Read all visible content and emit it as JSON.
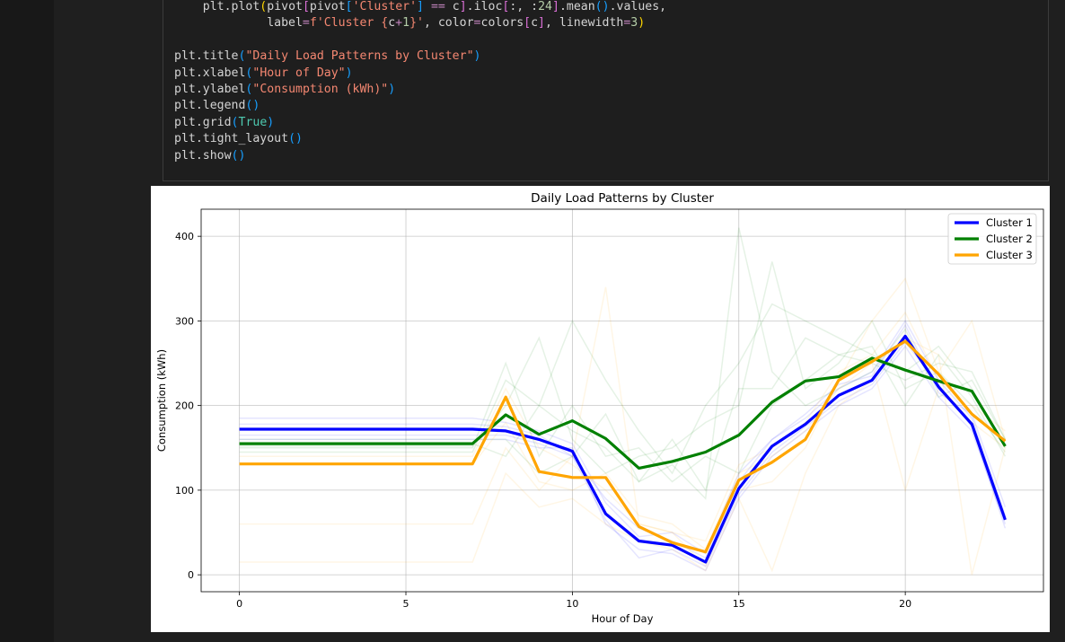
{
  "code_cell": {
    "lines": [
      [
        {
          "t": "    plt",
          "c": "obj"
        },
        {
          "t": ".",
          "c": "op"
        },
        {
          "t": "plot",
          "c": "obj"
        },
        {
          "t": "(",
          "c": "pun"
        },
        {
          "t": "pivot",
          "c": "obj"
        },
        {
          "t": "[",
          "c": "pun2"
        },
        {
          "t": "pivot",
          "c": "obj"
        },
        {
          "t": "[",
          "c": "pun3"
        },
        {
          "t": "'Cluster'",
          "c": "str"
        },
        {
          "t": "]",
          "c": "pun3"
        },
        {
          "t": " ",
          "c": "obj"
        },
        {
          "t": "==",
          "c": "eq"
        },
        {
          "t": " c",
          "c": "obj"
        },
        {
          "t": "]",
          "c": "pun2"
        },
        {
          "t": ".",
          "c": "op"
        },
        {
          "t": "iloc",
          "c": "obj"
        },
        {
          "t": "[",
          "c": "pun2"
        },
        {
          "t": ":, :",
          "c": "obj"
        },
        {
          "t": "24",
          "c": "num"
        },
        {
          "t": "]",
          "c": "pun2"
        },
        {
          "t": ".",
          "c": "op"
        },
        {
          "t": "mean",
          "c": "obj"
        },
        {
          "t": "()",
          "c": "pun3"
        },
        {
          "t": ".",
          "c": "op"
        },
        {
          "t": "values,",
          "c": "obj"
        }
      ],
      [
        {
          "t": "             label",
          "c": "obj"
        },
        {
          "t": "=",
          "c": "eq"
        },
        {
          "t": "f'Cluster {",
          "c": "str"
        },
        {
          "t": "c",
          "c": "obj"
        },
        {
          "t": "+",
          "c": "eq"
        },
        {
          "t": "1",
          "c": "num"
        },
        {
          "t": "}'",
          "c": "str"
        },
        {
          "t": ", color",
          "c": "obj"
        },
        {
          "t": "=",
          "c": "eq"
        },
        {
          "t": "colors",
          "c": "obj"
        },
        {
          "t": "[",
          "c": "pun2"
        },
        {
          "t": "c",
          "c": "obj"
        },
        {
          "t": "]",
          "c": "pun2"
        },
        {
          "t": ", linewidth",
          "c": "obj"
        },
        {
          "t": "=",
          "c": "eq"
        },
        {
          "t": "3",
          "c": "num"
        },
        {
          "t": ")",
          "c": "pun"
        }
      ],
      [],
      [
        {
          "t": "plt",
          "c": "obj"
        },
        {
          "t": ".",
          "c": "op"
        },
        {
          "t": "title",
          "c": "obj"
        },
        {
          "t": "(",
          "c": "pun3"
        },
        {
          "t": "\"Daily Load Patterns by Cluster\"",
          "c": "str"
        },
        {
          "t": ")",
          "c": "pun3"
        }
      ],
      [
        {
          "t": "plt",
          "c": "obj"
        },
        {
          "t": ".",
          "c": "op"
        },
        {
          "t": "xlabel",
          "c": "obj"
        },
        {
          "t": "(",
          "c": "pun3"
        },
        {
          "t": "\"Hour of Day\"",
          "c": "str"
        },
        {
          "t": ")",
          "c": "pun3"
        }
      ],
      [
        {
          "t": "plt",
          "c": "obj"
        },
        {
          "t": ".",
          "c": "op"
        },
        {
          "t": "ylabel",
          "c": "obj"
        },
        {
          "t": "(",
          "c": "pun3"
        },
        {
          "t": "\"Consumption (kWh)\"",
          "c": "str"
        },
        {
          "t": ")",
          "c": "pun3"
        }
      ],
      [
        {
          "t": "plt",
          "c": "obj"
        },
        {
          "t": ".",
          "c": "op"
        },
        {
          "t": "legend",
          "c": "obj"
        },
        {
          "t": "()",
          "c": "pun3"
        }
      ],
      [
        {
          "t": "plt",
          "c": "obj"
        },
        {
          "t": ".",
          "c": "op"
        },
        {
          "t": "grid",
          "c": "obj"
        },
        {
          "t": "(",
          "c": "pun3"
        },
        {
          "t": "True",
          "c": "kw"
        },
        {
          "t": ")",
          "c": "pun3"
        }
      ],
      [
        {
          "t": "plt",
          "c": "obj"
        },
        {
          "t": ".",
          "c": "op"
        },
        {
          "t": "tight_layout",
          "c": "obj"
        },
        {
          "t": "()",
          "c": "pun3"
        }
      ],
      [
        {
          "t": "plt",
          "c": "obj"
        },
        {
          "t": ".",
          "c": "op"
        },
        {
          "t": "show",
          "c": "obj"
        },
        {
          "t": "()",
          "c": "pun3"
        }
      ]
    ]
  },
  "chart_data": {
    "type": "line",
    "title": "Daily Load Patterns by Cluster",
    "xlabel": "Hour of Day",
    "ylabel": "Consumption (kWh)",
    "xlim": [
      -1.15,
      24.15
    ],
    "ylim": [
      -20,
      432
    ],
    "xticks": [
      0,
      5,
      10,
      15,
      20
    ],
    "yticks": [
      0,
      100,
      200,
      300,
      400
    ],
    "grid": true,
    "legend_position": "top-right",
    "x": [
      0,
      1,
      2,
      3,
      4,
      5,
      6,
      7,
      8,
      9,
      10,
      11,
      12,
      13,
      14,
      15,
      16,
      17,
      18,
      19,
      20,
      21,
      22,
      23
    ],
    "series": [
      {
        "name": "Cluster 1",
        "color": "#0000ff",
        "values": [
          172,
          172,
          172,
          172,
          172,
          172,
          172,
          172,
          170,
          160,
          146,
          72,
          40,
          35,
          15,
          102,
          152,
          178,
          212,
          230,
          282,
          222,
          178,
          65
        ]
      },
      {
        "name": "Cluster 2",
        "color": "#008000",
        "values": [
          155,
          155,
          155,
          155,
          155,
          155,
          155,
          155,
          189,
          166,
          182,
          161,
          126,
          134,
          145,
          165,
          204,
          229,
          234,
          256,
          242,
          229,
          217,
          152
        ]
      },
      {
        "name": "Cluster 3",
        "color": "#ffa500",
        "values": [
          131,
          131,
          131,
          131,
          131,
          131,
          131,
          131,
          210,
          122,
          115,
          115,
          57,
          38,
          27,
          112,
          133,
          160,
          230,
          252,
          276,
          237,
          190,
          158
        ]
      }
    ],
    "background_series": [
      {
        "color": "#0000ff",
        "values": [
          178,
          178,
          178,
          178,
          178,
          178,
          178,
          178,
          175,
          165,
          140,
          90,
          55,
          40,
          20,
          110,
          160,
          185,
          220,
          240,
          300,
          230,
          185,
          70
        ]
      },
      {
        "color": "#0000ff",
        "values": [
          160,
          160,
          160,
          160,
          160,
          160,
          160,
          160,
          160,
          150,
          150,
          60,
          30,
          25,
          5,
          90,
          140,
          170,
          200,
          220,
          270,
          210,
          170,
          60
        ]
      },
      {
        "color": "#0000ff",
        "values": [
          185,
          185,
          185,
          185,
          185,
          185,
          185,
          185,
          180,
          170,
          155,
          85,
          45,
          50,
          25,
          120,
          160,
          190,
          225,
          235,
          295,
          215,
          190,
          80
        ]
      },
      {
        "color": "#0000ff",
        "values": [
          165,
          165,
          165,
          165,
          165,
          165,
          165,
          165,
          165,
          155,
          140,
          65,
          20,
          30,
          10,
          95,
          145,
          175,
          205,
          225,
          275,
          225,
          175,
          55
        ]
      },
      {
        "color": "#008000",
        "values": [
          145,
          145,
          145,
          145,
          145,
          145,
          145,
          145,
          230,
          200,
          300,
          230,
          170,
          120,
          200,
          250,
          320,
          300,
          280,
          260,
          240,
          270,
          220,
          150
        ]
      },
      {
        "color": "#008000",
        "values": [
          160,
          160,
          160,
          160,
          160,
          160,
          160,
          160,
          160,
          120,
          140,
          190,
          110,
          160,
          100,
          220,
          220,
          280,
          260,
          250,
          230,
          250,
          240,
          160
        ]
      },
      {
        "color": "#008000",
        "values": [
          150,
          150,
          150,
          150,
          150,
          150,
          150,
          150,
          250,
          140,
          200,
          140,
          150,
          110,
          140,
          120,
          200,
          230,
          260,
          270,
          200,
          260,
          210,
          140
        ]
      },
      {
        "color": "#008000",
        "values": [
          155,
          155,
          155,
          155,
          155,
          155,
          155,
          155,
          140,
          200,
          170,
          150,
          110,
          130,
          90,
          410,
          240,
          200,
          220,
          240,
          290,
          210,
          230,
          160
        ]
      },
      {
        "color": "#008000",
        "values": [
          152,
          152,
          152,
          152,
          152,
          152,
          152,
          152,
          200,
          280,
          160,
          120,
          140,
          150,
          180,
          200,
          370,
          220,
          250,
          300,
          220,
          240,
          200,
          145
        ]
      },
      {
        "color": "#ffa500",
        "values": [
          60,
          60,
          60,
          60,
          60,
          60,
          60,
          60,
          150,
          100,
          140,
          340,
          60,
          50,
          10,
          100,
          110,
          150,
          230,
          300,
          350,
          240,
          300,
          160
        ]
      },
      {
        "color": "#ffa500",
        "values": [
          15,
          15,
          15,
          15,
          15,
          15,
          15,
          15,
          120,
          80,
          90,
          60,
          40,
          30,
          5,
          90,
          5,
          120,
          200,
          230,
          280,
          260,
          0,
          150
        ]
      },
      {
        "color": "#ffa500",
        "values": [
          140,
          140,
          140,
          140,
          140,
          140,
          140,
          140,
          220,
          150,
          130,
          100,
          60,
          50,
          40,
          130,
          150,
          180,
          240,
          260,
          310,
          230,
          200,
          170
        ]
      },
      {
        "color": "#ffa500",
        "values": [
          130,
          130,
          130,
          130,
          130,
          130,
          130,
          130,
          180,
          110,
          100,
          120,
          70,
          60,
          30,
          120,
          140,
          170,
          220,
          250,
          100,
          220,
          180,
          150
        ]
      }
    ]
  }
}
